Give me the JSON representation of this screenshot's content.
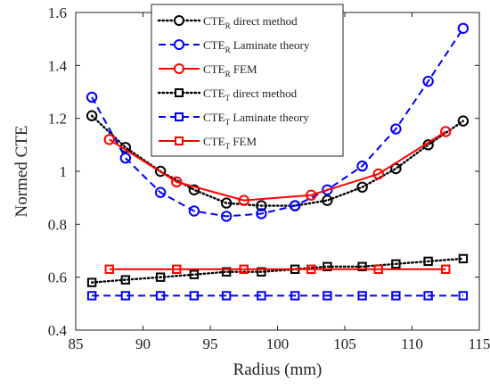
{
  "chart_data": {
    "type": "line",
    "xlabel": "Radius (mm)",
    "ylabel": "Normed CTE",
    "xlim": [
      85,
      115
    ],
    "ylim": [
      0.4,
      1.6
    ],
    "xticks": [
      85,
      90,
      95,
      100,
      105,
      110,
      115
    ],
    "yticks": [
      0.4,
      0.6,
      0.8,
      1,
      1.2,
      1.4,
      1.6
    ],
    "xtick_labels": [
      "85",
      "90",
      "95",
      "100",
      "105",
      "110",
      "115"
    ],
    "ytick_labels": [
      "0.4",
      "0.6",
      "0.8",
      "1",
      "1.2",
      "1.4",
      "1.6"
    ],
    "grid": false,
    "legend_position": "top-center",
    "series": [
      {
        "name_main": "CTE",
        "name_sub": "R",
        "name_rest": " direct method",
        "color": "#000000",
        "line_style": "dotted",
        "marker": "circle",
        "x": [
          86.2,
          88.7,
          91.3,
          93.8,
          96.2,
          98.8,
          101.3,
          103.7,
          106.3,
          108.8,
          111.2,
          113.8
        ],
        "y": [
          1.21,
          1.09,
          1.0,
          0.93,
          0.88,
          0.87,
          0.87,
          0.89,
          0.94,
          1.01,
          1.1,
          1.19
        ]
      },
      {
        "name_main": "CTE",
        "name_sub": "R",
        "name_rest": " Laminate theory",
        "color": "#0000ff",
        "line_style": "dashed",
        "marker": "circle",
        "x": [
          86.2,
          88.7,
          91.3,
          93.8,
          96.2,
          98.8,
          101.3,
          103.7,
          106.3,
          108.8,
          111.2,
          113.8
        ],
        "y": [
          1.28,
          1.05,
          0.92,
          0.85,
          0.83,
          0.84,
          0.87,
          0.93,
          1.02,
          1.16,
          1.34,
          1.54
        ]
      },
      {
        "name_main": "CTE",
        "name_sub": "R",
        "name_rest": " FEM",
        "color": "#ff0000",
        "line_style": "solid",
        "marker": "circle",
        "x": [
          87.5,
          92.5,
          97.5,
          102.5,
          107.5,
          112.5
        ],
        "y": [
          1.12,
          0.96,
          0.89,
          0.91,
          0.99,
          1.15
        ]
      },
      {
        "name_main": "CTE",
        "name_sub": "T",
        "name_rest": " direct method",
        "color": "#000000",
        "line_style": "dotted",
        "marker": "square",
        "x": [
          86.2,
          88.7,
          91.3,
          93.8,
          96.2,
          98.8,
          101.3,
          103.7,
          106.3,
          108.8,
          111.2,
          113.8
        ],
        "y": [
          0.58,
          0.59,
          0.6,
          0.61,
          0.62,
          0.62,
          0.63,
          0.64,
          0.64,
          0.65,
          0.66,
          0.67
        ]
      },
      {
        "name_main": "CTE",
        "name_sub": "T",
        "name_rest": " Laminate theory",
        "color": "#0000ff",
        "line_style": "dashed",
        "marker": "square",
        "x": [
          86.2,
          88.7,
          91.3,
          93.8,
          96.2,
          98.8,
          101.3,
          103.7,
          106.3,
          108.8,
          111.2,
          113.8
        ],
        "y": [
          0.53,
          0.53,
          0.53,
          0.53,
          0.53,
          0.53,
          0.53,
          0.53,
          0.53,
          0.53,
          0.53,
          0.53
        ]
      },
      {
        "name_main": "CTE",
        "name_sub": "T",
        "name_rest": " FEM",
        "color": "#ff0000",
        "line_style": "solid",
        "marker": "square",
        "x": [
          87.5,
          92.5,
          97.5,
          102.5,
          107.5,
          112.5
        ],
        "y": [
          0.63,
          0.63,
          0.63,
          0.63,
          0.63,
          0.63
        ]
      }
    ]
  }
}
